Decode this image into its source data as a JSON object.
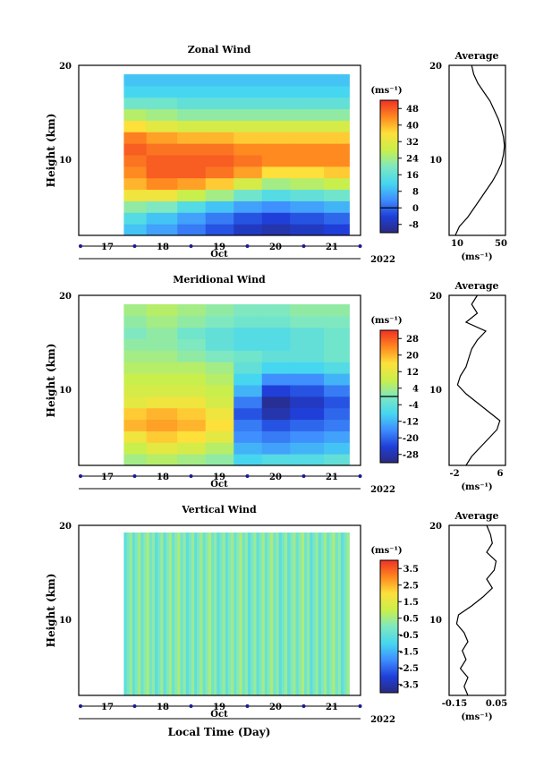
{
  "chart_data": [
    {
      "type": "heatmap",
      "title": "Zonal Wind",
      "ylabel": "Height (km)",
      "ylim": [
        1,
        20
      ],
      "yticks": [
        "20",
        "10"
      ],
      "xticks": [
        "17",
        "18",
        "19",
        "20",
        "21"
      ],
      "xlabel_month": "Oct",
      "year": "2022",
      "units": "(ms⁻¹)",
      "colorbar_ticks": [
        "48",
        "40",
        "32",
        "24",
        "16",
        "8",
        "0",
        "-8"
      ],
      "colorbar_range": [
        -12,
        52
      ],
      "contour_level": 0,
      "cells": [
        {
          "t": 17.4,
          "values": [
            10,
            14,
            22,
            34,
            40,
            44,
            46,
            48,
            45,
            36,
            26,
            18,
            12,
            10
          ]
        },
        {
          "t": 18.0,
          "values": [
            6,
            10,
            20,
            34,
            44,
            48,
            48,
            46,
            42,
            32,
            24,
            18,
            12,
            10
          ]
        },
        {
          "t": 18.5,
          "values": [
            2,
            6,
            14,
            28,
            42,
            48,
            48,
            46,
            40,
            30,
            22,
            16,
            12,
            10
          ]
        },
        {
          "t": 19.0,
          "values": [
            -2,
            2,
            10,
            24,
            38,
            46,
            48,
            46,
            40,
            30,
            22,
            16,
            12,
            10
          ]
        },
        {
          "t": 19.5,
          "values": [
            -6,
            -2,
            6,
            18,
            30,
            42,
            46,
            44,
            38,
            30,
            22,
            16,
            12,
            10
          ]
        },
        {
          "t": 20.0,
          "values": [
            -8,
            -4,
            4,
            14,
            24,
            36,
            44,
            44,
            38,
            30,
            22,
            16,
            12,
            10
          ]
        },
        {
          "t": 20.5,
          "values": [
            -6,
            -2,
            6,
            16,
            26,
            36,
            44,
            44,
            38,
            30,
            22,
            16,
            12,
            10
          ]
        },
        {
          "t": 21.2,
          "values": [
            -4,
            0,
            8,
            18,
            28,
            38,
            44,
            44,
            38,
            30,
            22,
            16,
            12,
            10
          ]
        }
      ],
      "average": {
        "title": "Average",
        "xticks": [
          "10",
          "50"
        ],
        "xlim": [
          0,
          55
        ],
        "heights": [
          1,
          2,
          3,
          4,
          5,
          6,
          7,
          8,
          9,
          10,
          11,
          12,
          13,
          14,
          15,
          16,
          17,
          18,
          19,
          20
        ],
        "values": [
          6,
          10,
          18,
          24,
          30,
          36,
          42,
          47,
          51,
          53,
          54,
          53,
          51,
          48,
          44,
          40,
          34,
          28,
          24,
          22
        ]
      }
    },
    {
      "type": "heatmap",
      "title": "Meridional Wind",
      "ylabel": "Height (km)",
      "ylim": [
        1,
        20
      ],
      "yticks": [
        "20",
        "10"
      ],
      "xticks": [
        "17",
        "18",
        "19",
        "20",
        "21"
      ],
      "xlabel_month": "Oct",
      "year": "2022",
      "units": "(ms⁻¹)",
      "colorbar_ticks": [
        "28",
        "20",
        "12",
        "4",
        "-4",
        "-12",
        "-20",
        "-28"
      ],
      "colorbar_range": [
        -32,
        32
      ],
      "contour_level": 0,
      "cells": [
        {
          "t": 17.4,
          "values": [
            4,
            8,
            14,
            20,
            18,
            12,
            10,
            8,
            6,
            4,
            2,
            0,
            2,
            4
          ]
        },
        {
          "t": 18.0,
          "values": [
            6,
            12,
            18,
            22,
            20,
            14,
            10,
            8,
            6,
            4,
            2,
            2,
            4,
            6
          ]
        },
        {
          "t": 18.5,
          "values": [
            4,
            10,
            16,
            20,
            18,
            14,
            10,
            8,
            6,
            2,
            0,
            -2,
            2,
            4
          ]
        },
        {
          "t": 19.0,
          "values": [
            2,
            6,
            12,
            16,
            14,
            10,
            8,
            6,
            4,
            0,
            -4,
            -4,
            0,
            2
          ]
        },
        {
          "t": 19.5,
          "values": [
            -8,
            -12,
            -16,
            -18,
            -22,
            -18,
            -12,
            -8,
            -4,
            -2,
            -6,
            -6,
            -2,
            0
          ]
        },
        {
          "t": 20.0,
          "values": [
            -6,
            -14,
            -18,
            -22,
            -28,
            -30,
            -24,
            -16,
            -8,
            -4,
            -6,
            -6,
            -2,
            0
          ]
        },
        {
          "t": 20.5,
          "values": [
            -6,
            -12,
            -16,
            -20,
            -24,
            -26,
            -22,
            -16,
            -8,
            -4,
            -4,
            -4,
            0,
            2
          ]
        },
        {
          "t": 21.2,
          "values": [
            -4,
            -10,
            -14,
            -18,
            -20,
            -22,
            -18,
            -12,
            -6,
            -2,
            -2,
            -2,
            0,
            2
          ]
        }
      ],
      "average": {
        "title": "Average",
        "xticks": [
          "-2",
          "6"
        ],
        "xlim": [
          -3,
          7
        ],
        "heights": [
          1,
          2,
          3,
          4,
          5,
          6,
          7,
          8,
          9,
          10,
          11,
          12,
          13,
          14,
          15,
          16,
          17,
          18,
          19,
          20
        ],
        "values": [
          0,
          1,
          2.5,
          4,
          5.5,
          6,
          4,
          2,
          0,
          -1.5,
          -1,
          0,
          0.5,
          1,
          2,
          3.5,
          0,
          2,
          1,
          2
        ]
      }
    },
    {
      "type": "heatmap",
      "title": "Vertical Wind",
      "ylabel": "Height (km)",
      "xlabel": "Local Time (Day)",
      "ylim": [
        1,
        20
      ],
      "yticks": [
        "20",
        "10"
      ],
      "xticks": [
        "17",
        "18",
        "19",
        "20",
        "21"
      ],
      "xlabel_month": "Oct",
      "year": "2022",
      "units": "(ms⁻¹)",
      "colorbar_ticks": [
        "3.5",
        "2.5",
        "1.5",
        "0.5",
        "-0.5",
        "-1.5",
        "-2.5",
        "-3.5"
      ],
      "colorbar_range": [
        -4,
        4
      ],
      "average": {
        "title": "Average",
        "xticks": [
          "-0.15",
          "0.05"
        ],
        "xlim": [
          -0.2,
          0.1
        ],
        "heights": [
          1,
          2,
          3,
          4,
          5,
          6,
          7,
          8,
          9,
          10,
          11,
          12,
          13,
          14,
          15,
          16,
          17,
          18,
          19,
          20
        ],
        "values": [
          -0.1,
          -0.12,
          -0.1,
          -0.14,
          -0.11,
          -0.13,
          -0.1,
          -0.12,
          -0.16,
          -0.15,
          -0.08,
          -0.02,
          0.03,
          0.0,
          0.04,
          0.05,
          0.0,
          0.03,
          0.02,
          0.0
        ]
      }
    }
  ]
}
